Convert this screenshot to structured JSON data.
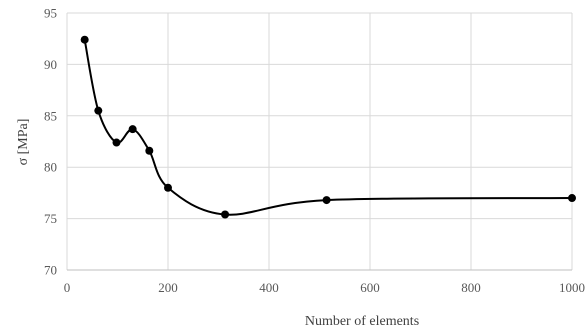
{
  "chart_data": {
    "type": "line",
    "title": "",
    "xlabel": "Number of elements",
    "ylabel": "σ [MPa]",
    "xlim": [
      0,
      1000
    ],
    "ylim": [
      70,
      95
    ],
    "x_ticks": [
      0,
      200,
      400,
      600,
      800,
      1000
    ],
    "y_ticks": [
      70,
      75,
      80,
      85,
      90,
      95
    ],
    "grid": true,
    "legend": "none",
    "series": [
      {
        "smoothed": true,
        "color": "#000000",
        "points": [
          {
            "x": 35,
            "y": 92.4
          },
          {
            "x": 62,
            "y": 85.5
          },
          {
            "x": 98,
            "y": 82.4
          },
          {
            "x": 130,
            "y": 83.7
          },
          {
            "x": 163,
            "y": 81.6
          },
          {
            "x": 200,
            "y": 78.0
          },
          {
            "x": 313,
            "y": 75.4
          },
          {
            "x": 514,
            "y": 76.8
          },
          {
            "x": 1000,
            "y": 77.0
          }
        ]
      }
    ]
  }
}
